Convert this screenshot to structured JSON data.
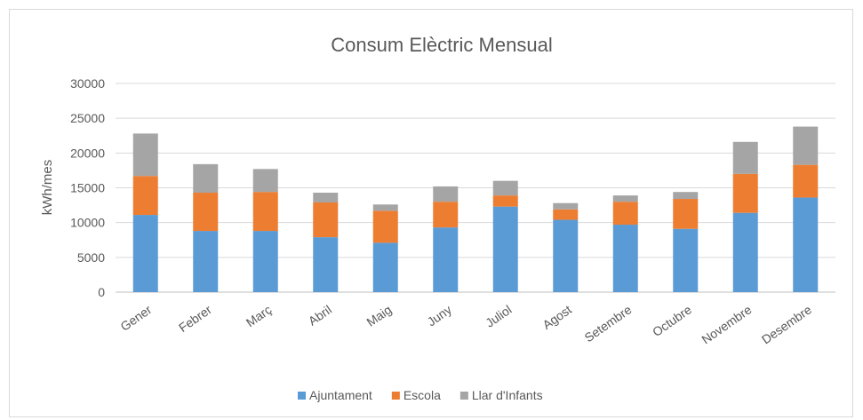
{
  "chart_data": {
    "type": "bar",
    "stacked": true,
    "title": "Consum Elèctric Mensual",
    "xlabel": "",
    "ylabel": "kWh/mes",
    "ylim": [
      0,
      30000
    ],
    "yticks": [
      0,
      5000,
      10000,
      15000,
      20000,
      25000,
      30000
    ],
    "categories": [
      "Gener",
      "Febrer",
      "Març",
      "Abril",
      "Maig",
      "Juny",
      "Juliol",
      "Agost",
      "Setembre",
      "Octubre",
      "Novembre",
      "Desembre"
    ],
    "series": [
      {
        "name": "Ajuntament",
        "color": "#5b9bd5",
        "values": [
          11100,
          8800,
          8800,
          7900,
          7100,
          9300,
          12300,
          10400,
          9700,
          9100,
          11400,
          13600
        ]
      },
      {
        "name": "Escola",
        "color": "#ed7d31",
        "values": [
          5600,
          5500,
          5600,
          5000,
          4600,
          3700,
          1600,
          1500,
          3300,
          4300,
          5600,
          4700
        ]
      },
      {
        "name": "Llar d'Infants",
        "color": "#a5a5a5",
        "values": [
          6100,
          4100,
          3300,
          1400,
          900,
          2200,
          2100,
          900,
          900,
          1000,
          4600,
          5500
        ]
      }
    ],
    "grid": true,
    "legend_position": "bottom"
  }
}
